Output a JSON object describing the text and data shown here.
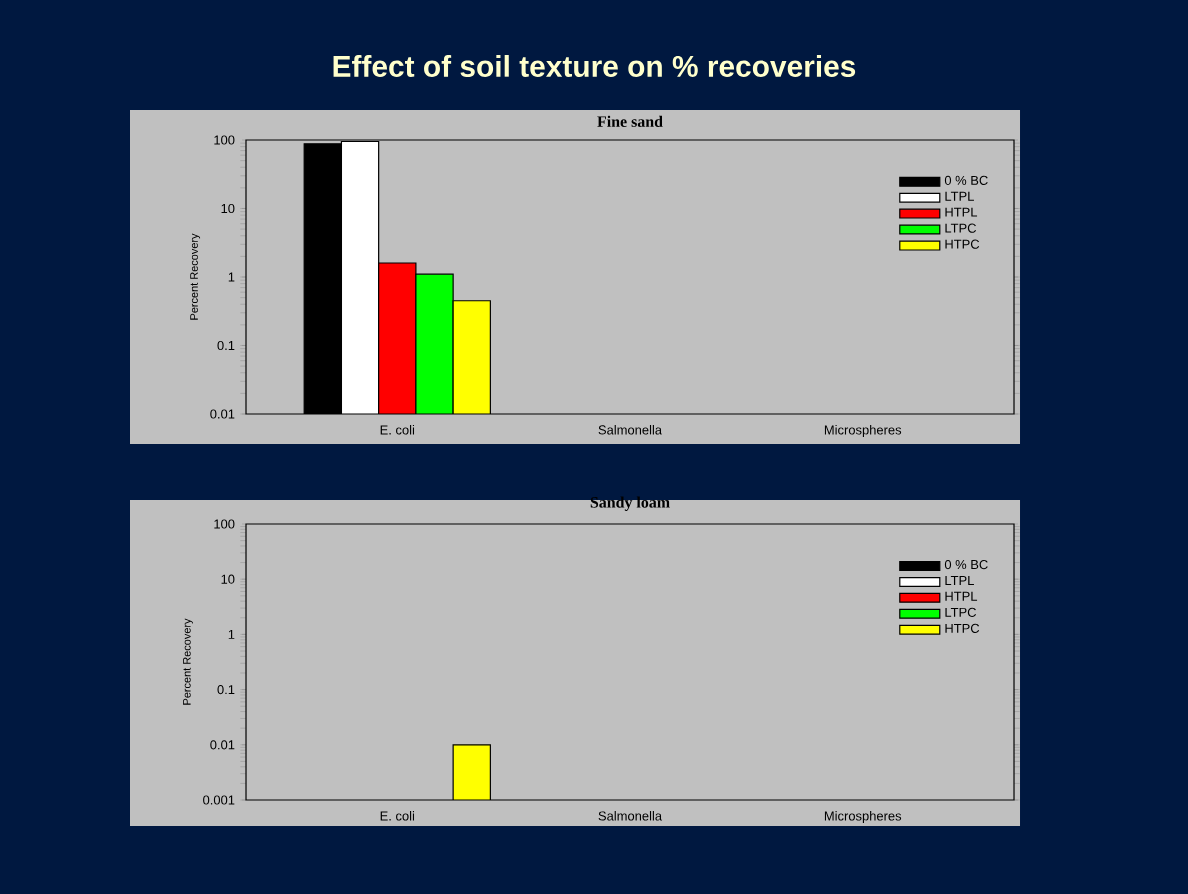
{
  "chart_data": [
    {
      "type": "bar",
      "title": "Effect of soil texture on % recoveries",
      "subtitle": "Fine sand",
      "ylabel": "Percent Recovery",
      "categories": [
        "E. coli",
        "Salmonella",
        "Microspheres"
      ],
      "series": [
        {
          "name": "0 % BC",
          "color": "#000000",
          "values": [
            88,
            null,
            null
          ]
        },
        {
          "name": "LTPL",
          "color": "#ffffff",
          "values": [
            95,
            null,
            null
          ]
        },
        {
          "name": "HTPL",
          "color": "#ff0000",
          "values": [
            1.6,
            null,
            null
          ]
        },
        {
          "name": "LTPC",
          "color": "#00ff00",
          "values": [
            1.1,
            null,
            null
          ]
        },
        {
          "name": "HTPC",
          "color": "#ffff00",
          "values": [
            0.45,
            null,
            null
          ]
        }
      ],
      "log": true,
      "ylim": [
        0.01,
        100
      ],
      "yticks": [
        0.01,
        0.1,
        1,
        10,
        100
      ],
      "legend": "top right"
    },
    {
      "type": "bar",
      "title": "Sandy loam",
      "ylabel": "Percent Recovery",
      "categories": [
        "E. coli",
        "Salmonella",
        "Microspheres"
      ],
      "series": [
        {
          "name": "0 % BC",
          "color": "#000000",
          "values": [
            null,
            null,
            null
          ]
        },
        {
          "name": "LTPL",
          "color": "#ffffff",
          "values": [
            null,
            null,
            null
          ]
        },
        {
          "name": "HTPL",
          "color": "#ff0000",
          "values": [
            null,
            null,
            null
          ]
        },
        {
          "name": "LTPC",
          "color": "#00ff00",
          "values": [
            null,
            null,
            null
          ]
        },
        {
          "name": "HTPC",
          "color": "#ffff00",
          "values": [
            0.01,
            null,
            null
          ]
        }
      ],
      "log": true,
      "ylim": [
        0.001,
        100
      ],
      "yticks": [
        0.001,
        0.01,
        0.1,
        1,
        10,
        100
      ],
      "legend": "top right"
    }
  ]
}
